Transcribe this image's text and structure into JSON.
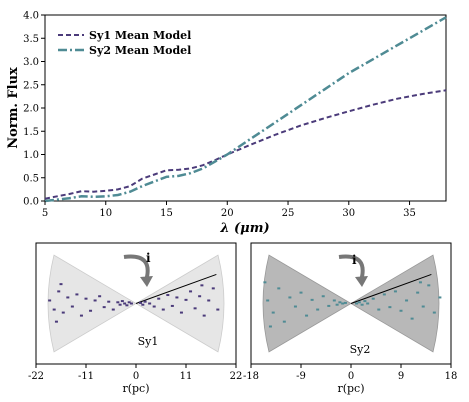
{
  "chart_data": [
    {
      "type": "line",
      "xlabel": "λ (μm)",
      "ylabel": "Norm. Flux",
      "xlim": [
        5,
        38
      ],
      "ylim": [
        0,
        4.0
      ],
      "xticks": [
        5,
        10,
        15,
        20,
        25,
        30,
        35
      ],
      "yticks": [
        0.0,
        0.5,
        1.0,
        1.5,
        2.0,
        2.5,
        3.0,
        3.5,
        4.0
      ],
      "legend_position": "top-left",
      "grid": false,
      "series": [
        {
          "name": "Sy1 Mean Model",
          "color": "#4b3b7a",
          "style": "dashed",
          "x": [
            5,
            6,
            7,
            8,
            9,
            10,
            11,
            12,
            13,
            14,
            15,
            16,
            17,
            18,
            19,
            20,
            22,
            24,
            26,
            28,
            30,
            32,
            34,
            36,
            38
          ],
          "y": [
            0.05,
            0.1,
            0.15,
            0.21,
            0.2,
            0.22,
            0.25,
            0.32,
            0.48,
            0.57,
            0.66,
            0.67,
            0.7,
            0.77,
            0.88,
            1.0,
            1.22,
            1.43,
            1.62,
            1.78,
            1.93,
            2.07,
            2.2,
            2.3,
            2.38
          ]
        },
        {
          "name": "Sy2 Mean Model",
          "color": "#4f8b94",
          "style": "dashdot",
          "x": [
            5,
            6,
            7,
            8,
            9,
            10,
            11,
            12,
            13,
            14,
            15,
            16,
            17,
            18,
            19,
            20,
            22,
            24,
            26,
            28,
            30,
            32,
            34,
            36,
            38
          ],
          "y": [
            0.0,
            0.03,
            0.06,
            0.1,
            0.09,
            0.1,
            0.13,
            0.2,
            0.32,
            0.42,
            0.52,
            0.54,
            0.6,
            0.7,
            0.85,
            1.0,
            1.35,
            1.7,
            2.05,
            2.4,
            2.75,
            3.05,
            3.35,
            3.65,
            3.95
          ]
        }
      ]
    },
    {
      "type": "scatter",
      "label": "Sy1",
      "xlabel": "r(pc)",
      "xlim": [
        -22,
        22
      ],
      "xticks": [
        -22,
        -11,
        0,
        11,
        22
      ],
      "ylim": [
        -1,
        1
      ],
      "angle_label": "i",
      "cone_color": "#e6e6e6",
      "point_color": "#4b3b7a",
      "points": [
        [
          -19,
          0.05
        ],
        [
          -18,
          -0.1
        ],
        [
          -17,
          0.2
        ],
        [
          -16,
          -0.15
        ],
        [
          -15,
          0.1
        ],
        [
          -14,
          -0.05
        ],
        [
          -13,
          0.15
        ],
        [
          -12,
          -0.2
        ],
        [
          -11,
          0.08
        ],
        [
          -10,
          -0.12
        ],
        [
          -9,
          0.05
        ],
        [
          -8,
          0.12
        ],
        [
          -7,
          -0.06
        ],
        [
          -6,
          0.03
        ],
        [
          -5,
          -0.1
        ],
        [
          -4,
          0.02
        ],
        [
          -3.5,
          -0.02
        ],
        [
          -3,
          0.04
        ],
        [
          -2.5,
          0.0
        ],
        [
          -2,
          -0.03
        ],
        [
          -1.5,
          0.02
        ],
        [
          -1,
          0.0
        ],
        [
          1,
          0.01
        ],
        [
          1.5,
          -0.02
        ],
        [
          2,
          0.03
        ],
        [
          3,
          0.0
        ],
        [
          4,
          -0.05
        ],
        [
          5,
          0.08
        ],
        [
          6,
          -0.1
        ],
        [
          7,
          0.14
        ],
        [
          8,
          -0.04
        ],
        [
          9,
          0.1
        ],
        [
          10,
          -0.15
        ],
        [
          11,
          0.06
        ],
        [
          12,
          0.2
        ],
        [
          13,
          -0.08
        ],
        [
          14,
          0.12
        ],
        [
          15,
          -0.2
        ],
        [
          16,
          0.05
        ],
        [
          17,
          0.25
        ],
        [
          18,
          -0.1
        ],
        [
          -16.5,
          0.32
        ],
        [
          -17.5,
          -0.3
        ],
        [
          14.5,
          0.3
        ]
      ]
    },
    {
      "type": "scatter",
      "label": "Sy2",
      "xlabel": "r(pc)",
      "xlim": [
        -18,
        18
      ],
      "xticks": [
        -18,
        -9,
        0,
        9,
        18
      ],
      "ylim": [
        -1,
        1
      ],
      "angle_label": "i",
      "cone_color": "#b8b8b8",
      "point_color": "#4f8b94",
      "points": [
        [
          -15,
          0.05
        ],
        [
          -14,
          -0.15
        ],
        [
          -13,
          0.25
        ],
        [
          -12,
          -0.3
        ],
        [
          -11,
          0.1
        ],
        [
          -10,
          -0.05
        ],
        [
          -9,
          0.18
        ],
        [
          -8,
          -0.2
        ],
        [
          -7,
          0.06
        ],
        [
          -6,
          -0.1
        ],
        [
          -5,
          0.12
        ],
        [
          -4,
          -0.04
        ],
        [
          -3,
          0.05
        ],
        [
          -2.5,
          -0.02
        ],
        [
          -2,
          0.02
        ],
        [
          -1.5,
          0.0
        ],
        [
          -1,
          0.01
        ],
        [
          1,
          0.0
        ],
        [
          1.5,
          0.02
        ],
        [
          2,
          -0.02
        ],
        [
          2.5,
          0.04
        ],
        [
          3,
          0.0
        ],
        [
          4,
          0.08
        ],
        [
          5,
          -0.1
        ],
        [
          6,
          0.15
        ],
        [
          7,
          -0.06
        ],
        [
          8,
          0.2
        ],
        [
          9,
          -0.12
        ],
        [
          10,
          0.05
        ],
        [
          11,
          -0.25
        ],
        [
          12,
          0.18
        ],
        [
          13,
          -0.05
        ],
        [
          14,
          0.3
        ],
        [
          15,
          -0.15
        ],
        [
          16,
          0.1
        ],
        [
          -15.5,
          0.35
        ],
        [
          -14.5,
          -0.38
        ],
        [
          12.5,
          0.35
        ]
      ]
    }
  ]
}
